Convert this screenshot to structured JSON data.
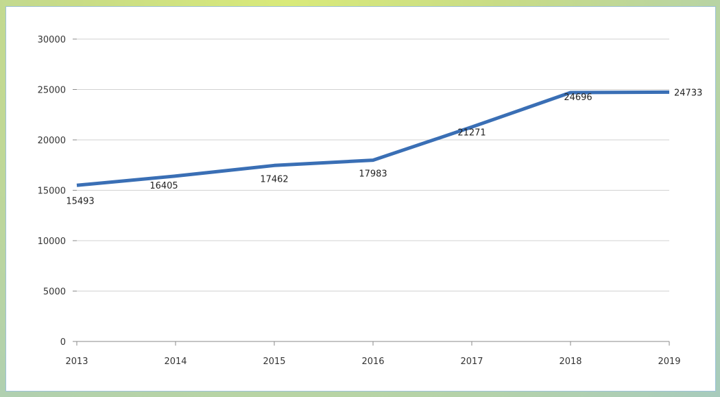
{
  "chart_data": {
    "type": "line",
    "title": "",
    "xlabel": "",
    "ylabel": "",
    "x": [
      "2013",
      "2014",
      "2015",
      "2016",
      "2017",
      "2018",
      "2019"
    ],
    "series": [
      {
        "values": [
          15493,
          16405,
          17462,
          17983,
          21271,
          24696,
          24733
        ]
      }
    ],
    "ylim": [
      0,
      30000
    ],
    "yticks": [
      0,
      5000,
      10000,
      15000,
      20000,
      25000,
      30000
    ],
    "data_labels": [
      "15493",
      "16405",
      "17462",
      "17983",
      "21271",
      "24696",
      "24733"
    ],
    "grid": "horizontal",
    "legend": "none",
    "colors": {
      "line": "#3a6fb5",
      "grid": "#d2d2d2",
      "axis": "#8a8a8a"
    }
  }
}
